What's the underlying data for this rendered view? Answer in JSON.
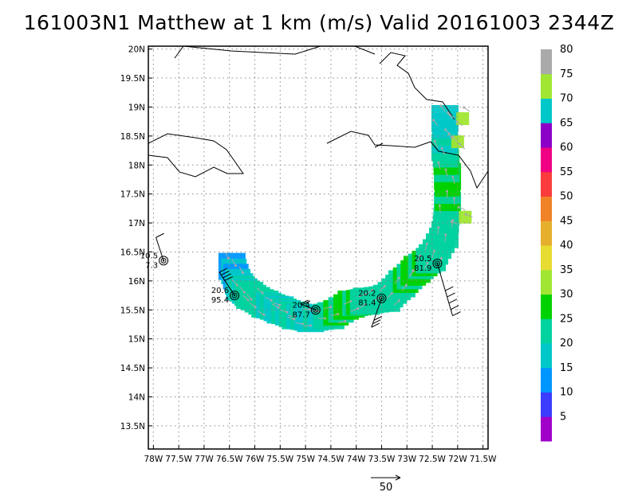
{
  "title": "161003N1 Matthew at 1 km (m/s) Valid 20161003 2344Z",
  "chart_data": {
    "type": "heatmap",
    "title": "161003N1 Matthew at 1 km (m/s) Valid 20161003 2344Z",
    "xlabel": "",
    "ylabel": "",
    "xlim": [
      -78.1,
      -71.4
    ],
    "ylim": [
      13.1,
      20.05
    ],
    "grid": true,
    "x_ticks": [
      -78,
      -77.5,
      -77,
      -76.5,
      -76,
      -75.5,
      -75,
      -74.5,
      -74,
      -73.5,
      -73,
      -72.5,
      -72,
      -71.5
    ],
    "x_tick_labels": [
      "78W",
      "77.5W",
      "77W",
      "76.5W",
      "76W",
      "75.5W",
      "75W",
      "74.5W",
      "74W",
      "73.5W",
      "73W",
      "72.5W",
      "72W",
      "71.5W"
    ],
    "y_ticks": [
      13.5,
      14,
      14.5,
      15,
      15.5,
      16,
      16.5,
      17,
      17.5,
      18,
      18.5,
      19,
      19.5,
      20
    ],
    "y_tick_labels": [
      "13.5N",
      "14N",
      "14.5N",
      "15N",
      "15.5N",
      "16N",
      "16.5N",
      "17N",
      "17.5N",
      "18N",
      "18.5N",
      "19N",
      "19.5N",
      "20N"
    ],
    "colorbar": {
      "levels": [
        0,
        5,
        10,
        15,
        20,
        25,
        30,
        35,
        40,
        45,
        50,
        55,
        60,
        65,
        70,
        75,
        80,
        85
      ],
      "labels": [
        "5",
        "10",
        "15",
        "20",
        "25",
        "30",
        "35",
        "40",
        "45",
        "50",
        "55",
        "60",
        "65",
        "70",
        "75",
        "80"
      ],
      "colors": [
        "#a000c8",
        "#3c3cff",
        "#0096ff",
        "#00c8c8",
        "#00d2a0",
        "#00d200",
        "#a0e632",
        "#e6dc32",
        "#e6af2d",
        "#f08228",
        "#fa3c3c",
        "#f00082",
        "#8c00c8",
        "#00c8c8",
        "#a0e632",
        "#aaaaaa"
      ]
    },
    "wind_field": [
      {
        "lon": -76.45,
        "lat": 16.25,
        "speed": 10
      },
      {
        "lon": -76.3,
        "lat": 15.9,
        "speed": 15
      },
      {
        "lon": -76.1,
        "lat": 15.75,
        "speed": 20
      },
      {
        "lon": -75.8,
        "lat": 15.6,
        "speed": 20
      },
      {
        "lon": -75.5,
        "lat": 15.5,
        "speed": 15
      },
      {
        "lon": -75.2,
        "lat": 15.4,
        "speed": 20
      },
      {
        "lon": -74.9,
        "lat": 15.35,
        "speed": 15
      },
      {
        "lon": -74.5,
        "lat": 15.4,
        "speed": 20
      },
      {
        "lon": -74.1,
        "lat": 15.6,
        "speed": 25
      },
      {
        "lon": -73.8,
        "lat": 15.65,
        "speed": 20
      },
      {
        "lon": -73.4,
        "lat": 15.7,
        "speed": 20
      },
      {
        "lon": -73.1,
        "lat": 15.95,
        "speed": 20
      },
      {
        "lon": -72.8,
        "lat": 16.2,
        "speed": 25
      },
      {
        "lon": -72.5,
        "lat": 16.4,
        "speed": 20
      },
      {
        "lon": -72.25,
        "lat": 16.8,
        "speed": 20
      },
      {
        "lon": -72.2,
        "lat": 17.3,
        "speed": 20
      },
      {
        "lon": -72.2,
        "lat": 17.8,
        "speed": 25
      },
      {
        "lon": -72.25,
        "lat": 18.3,
        "speed": 20
      },
      {
        "lon": -72.25,
        "lat": 18.8,
        "speed": 15
      },
      {
        "lon": -72.0,
        "lat": 18.4,
        "speed": 70
      },
      {
        "lon": -71.9,
        "lat": 18.8,
        "speed": 70
      },
      {
        "lon": -71.85,
        "lat": 17.1,
        "speed": 70
      }
    ],
    "centers": [
      {
        "lat_label": "20.5",
        "pressure_label": "81.9",
        "lon": -72.4,
        "lat": 16.3
      },
      {
        "lat_label": "20.2",
        "pressure_label": "81.4",
        "lon": -73.5,
        "lat": 15.7
      },
      {
        "lat_label": "20.4",
        "pressure_label": "87.7",
        "lon": -74.8,
        "lat": 15.5
      },
      {
        "lat_label": "20.6",
        "pressure_label": "95.4",
        "lon": -76.4,
        "lat": 15.75
      },
      {
        "lat_label": "10.5",
        "pressure_label": "7.3",
        "lon": -77.8,
        "lat": 16.35
      }
    ],
    "vector_reference_label": "50"
  }
}
